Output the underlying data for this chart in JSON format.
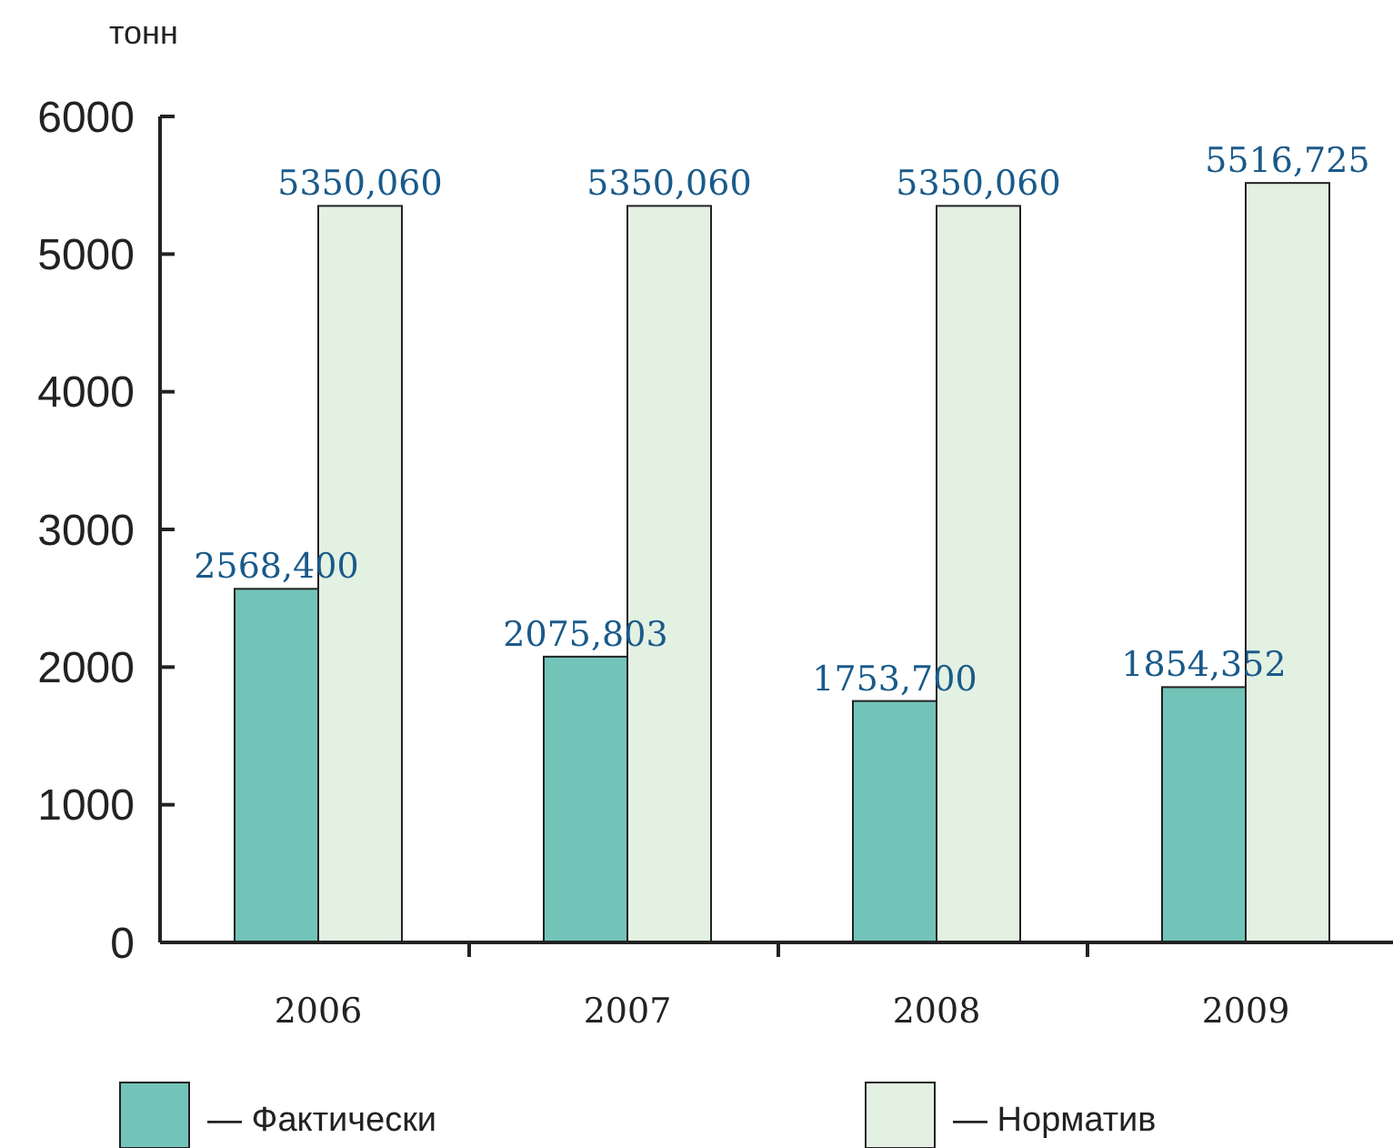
{
  "chart_data": {
    "type": "bar",
    "ylabel": "тонн",
    "categories": [
      "2006",
      "2007",
      "2008",
      "2009"
    ],
    "series": [
      {
        "name": "— Фактически",
        "color": "#72c4b8",
        "values": [
          2568.4,
          2075.803,
          1753.7,
          1854.352
        ],
        "value_labels": [
          "2568,400",
          "2075,803",
          "1753,700",
          "1854,352"
        ]
      },
      {
        "name": "— Норматив",
        "color": "#e3f1e3",
        "values": [
          5350.06,
          5350.06,
          5350.06,
          5516.725
        ],
        "value_labels": [
          "5350,060",
          "5350,060",
          "5350,060",
          "5516,725"
        ]
      }
    ],
    "ylim": [
      0,
      6000
    ],
    "yticks": [
      0,
      1000,
      2000,
      3000,
      4000,
      5000,
      6000
    ],
    "grid": false,
    "legend": "bottom"
  }
}
